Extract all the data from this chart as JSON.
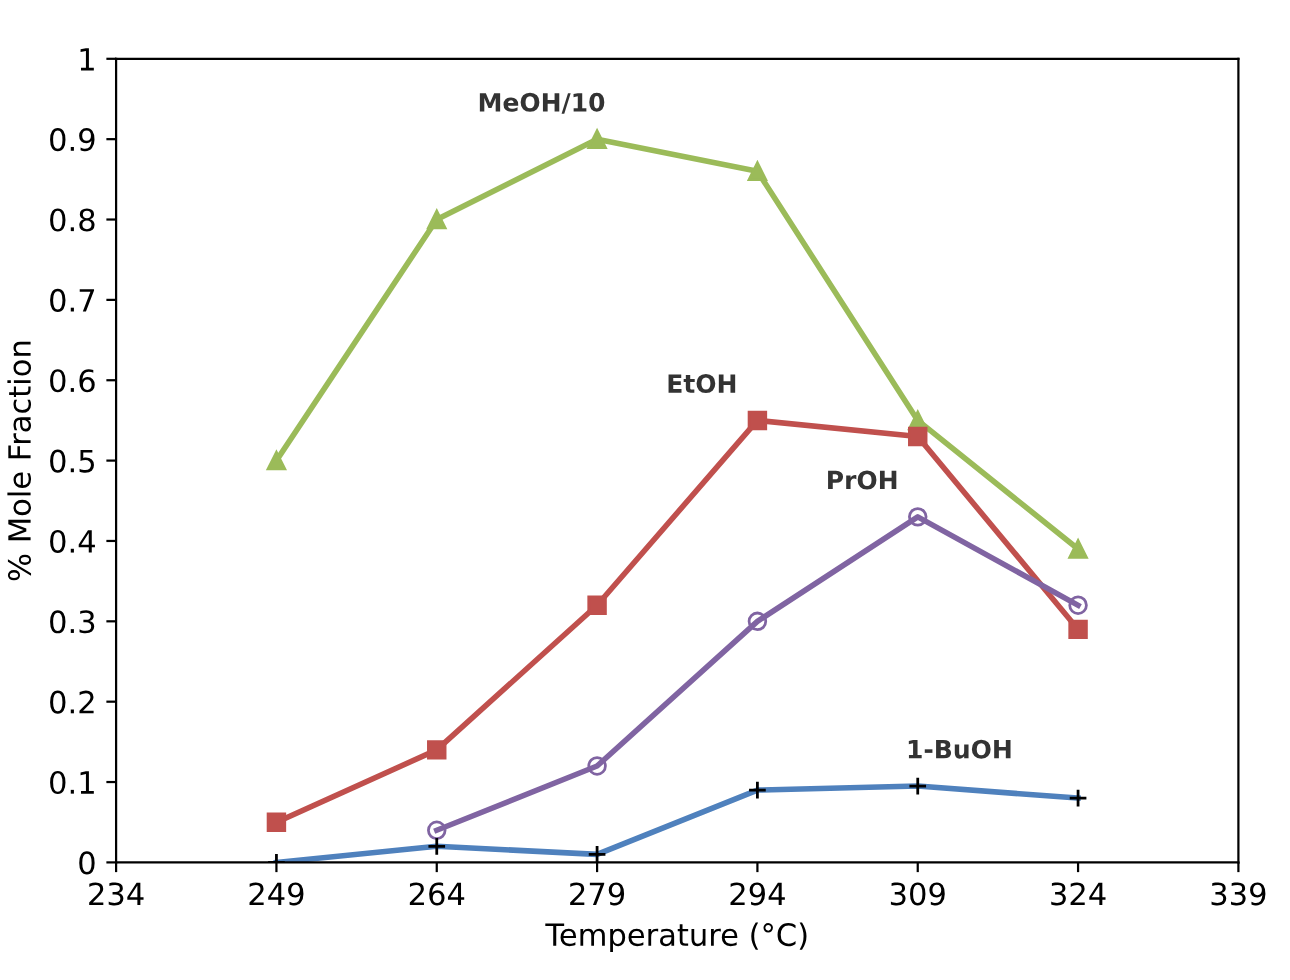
{
  "chart_data": {
    "type": "line",
    "xlabel": "Temperature (°C)",
    "ylabel": "% Mole Fraction",
    "xlim": [
      234,
      339
    ],
    "xticks": [
      234,
      249,
      264,
      279,
      294,
      309,
      324,
      339
    ],
    "ylim": [
      0,
      1
    ],
    "yticks": [
      0,
      0.1,
      0.2,
      0.3,
      0.4,
      0.5,
      0.6,
      0.7,
      0.8,
      0.9,
      1
    ],
    "grid": false,
    "legend": false,
    "series": [
      {
        "name": "MeOH/10",
        "color": "#9bbb59",
        "marker": "triangle",
        "x": [
          249,
          264,
          279,
          294,
          309,
          324
        ],
        "values": [
          0.5,
          0.8,
          0.9,
          0.86,
          0.55,
          0.39
        ]
      },
      {
        "name": "EtOH",
        "color": "#c0504d",
        "marker": "square",
        "x": [
          249,
          264,
          279,
          294,
          309,
          324
        ],
        "values": [
          0.05,
          0.14,
          0.32,
          0.55,
          0.53,
          0.29
        ]
      },
      {
        "name": "PrOH",
        "color": "#8064a2",
        "marker": "circle",
        "x": [
          264,
          279,
          294,
          309,
          324
        ],
        "values": [
          0.04,
          0.12,
          0.3,
          0.43,
          0.32
        ]
      },
      {
        "name": "1-BuOH",
        "color": "#4f81bd",
        "marker": "cross",
        "x": [
          249,
          264,
          279,
          294,
          309,
          324
        ],
        "values": [
          0,
          0.02,
          0.01,
          0.09,
          0.095,
          0.08
        ]
      }
    ]
  }
}
